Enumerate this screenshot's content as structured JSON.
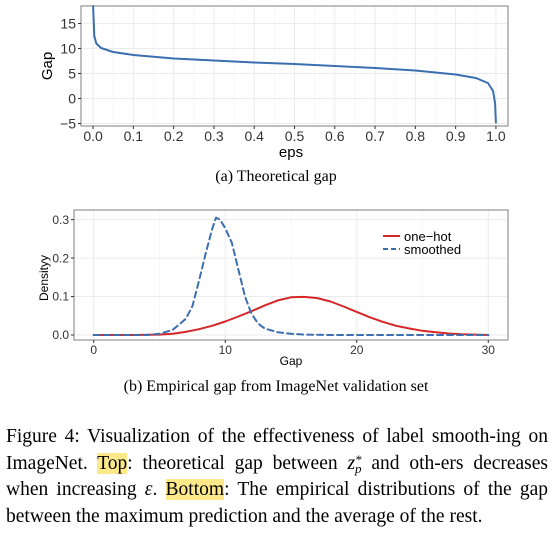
{
  "chart_data": [
    {
      "type": "line",
      "id": "top",
      "xlabel": "eps",
      "ylabel": "Gap",
      "xlim": [
        -0.03,
        1.03
      ],
      "ylim": [
        -5.5,
        18.5
      ],
      "xticks": [
        "0.0",
        "0.1",
        "0.2",
        "0.3",
        "0.4",
        "0.5",
        "0.6",
        "0.7",
        "0.8",
        "0.9",
        "1.0"
      ],
      "yticks": [
        "−5",
        "0",
        "5",
        "10",
        "15"
      ],
      "grid": true,
      "series": [
        {
          "color": "#3b6fb0",
          "x": [
            0.0,
            0.003,
            0.008,
            0.02,
            0.05,
            0.1,
            0.2,
            0.3,
            0.4,
            0.5,
            0.6,
            0.7,
            0.8,
            0.9,
            0.95,
            0.98,
            0.993,
            0.998,
            1.0
          ],
          "y": [
            18.5,
            12.5,
            11.0,
            10.1,
            9.3,
            8.7,
            8.0,
            7.6,
            7.2,
            6.9,
            6.5,
            6.1,
            5.6,
            4.8,
            4.1,
            3.1,
            1.5,
            -1.0,
            -4.8
          ]
        }
      ],
      "caption": "(a) Theoretical gap"
    },
    {
      "type": "line",
      "id": "bottom",
      "xlabel": "Gap",
      "ylabel": "Densityy",
      "xlim": [
        -1.5,
        31.5
      ],
      "ylim": [
        -0.013,
        0.325
      ],
      "xticks": [
        "0",
        "10",
        "20",
        "30"
      ],
      "xtick_values": [
        0,
        10,
        20,
        30
      ],
      "yticks": [
        "0.0",
        "0.1",
        "0.2",
        "0.3"
      ],
      "ytick_values": [
        0,
        0.1,
        0.2,
        0.3
      ],
      "grid": true,
      "legend_position": "top-right",
      "series": [
        {
          "name": "one−hot",
          "color": "#d62728",
          "dash": "solid",
          "x": [
            0,
            3,
            5,
            6,
            7,
            8,
            9,
            10,
            11,
            12,
            13,
            14,
            15,
            16,
            17,
            18,
            19,
            20,
            21,
            22,
            23,
            24,
            25,
            26,
            27,
            28,
            29,
            30
          ],
          "y": [
            0.0,
            0.0,
            0.001,
            0.003,
            0.008,
            0.015,
            0.024,
            0.035,
            0.048,
            0.062,
            0.077,
            0.09,
            0.098,
            0.099,
            0.096,
            0.087,
            0.074,
            0.06,
            0.046,
            0.034,
            0.024,
            0.017,
            0.011,
            0.007,
            0.004,
            0.002,
            0.001,
            0.0
          ]
        },
        {
          "name": "smoothed",
          "color": "#3b6fb0",
          "dash": "dashed",
          "x": [
            0,
            4,
            5,
            6,
            7,
            7.5,
            8,
            8.5,
            9,
            9.3,
            9.6,
            10,
            10.5,
            11,
            11.5,
            12,
            12.5,
            13,
            14,
            15,
            16,
            18,
            20,
            30
          ],
          "y": [
            0.0,
            0.0,
            0.003,
            0.013,
            0.042,
            0.075,
            0.14,
            0.21,
            0.275,
            0.305,
            0.3,
            0.278,
            0.24,
            0.17,
            0.1,
            0.055,
            0.03,
            0.017,
            0.007,
            0.003,
            0.001,
            0.0,
            0.0,
            0.0
          ]
        }
      ],
      "caption": "(b) Empirical gap from ImageNet validation set"
    }
  ],
  "figure_caption": {
    "p1": "Figure 4: Visualization of the effectiveness of label smooth-ing on ImageNet. ",
    "hl1": "Top",
    "p2": ": theoretical gap between ",
    "math_base": "z",
    "math_sup": "*",
    "math_sub": "p",
    "p3": " and oth-ers decreases when increasing ",
    "math_eps": "ε",
    "p4": ". ",
    "hl2": "Bottom",
    "p5": ": The empirical distributions of the gap between the maximum prediction and the average of the rest."
  }
}
